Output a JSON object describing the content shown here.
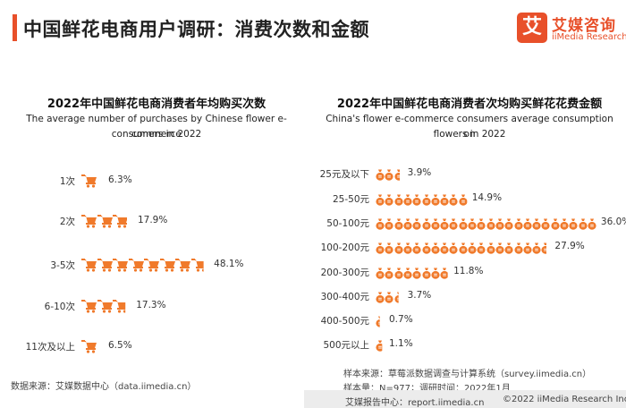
{
  "header": {
    "title": "中国鲜花电商用户调研：消费次数和金额",
    "logo_mark": "艾",
    "logo_cn": "艾媒咨询",
    "logo_en": "iiMedia Research"
  },
  "left_chart": {
    "title": "2022年中国鲜花电商消费者年均购买次数",
    "subtitle_line1": "The average number of purchases by Chinese flower e-commerce",
    "subtitle_line2": "consumers in 2022",
    "icon": "shopping-cart-icon",
    "color": "#f07a2b"
  },
  "right_chart": {
    "title": "2022年中国鲜花电商消费者次均购买鲜花花费金额",
    "subtitle_line1": "China's flower e-commerce consumers average consumption on",
    "subtitle_line2": "flowers in 2022",
    "icon": "money-bag-icon",
    "color": "#f07a2b"
  },
  "chart_data": [
    {
      "type": "bar",
      "title": "2022年中国鲜花电商消费者年均购买次数",
      "categories": [
        "1次",
        "2次",
        "3-5次",
        "6-10次",
        "11次及以上"
      ],
      "values": [
        6.3,
        17.9,
        48.1,
        17.3,
        6.5
      ],
      "value_labels": [
        "6.3%",
        "17.9%",
        "48.1%",
        "17.3%",
        "6.5%"
      ],
      "unit": "%"
    },
    {
      "type": "bar",
      "title": "2022年中国鲜花电商消费者次均购买鲜花花费金额",
      "categories": [
        "25元及以下",
        "25-50元",
        "50-100元",
        "100-200元",
        "200-300元",
        "300-400元",
        "400-500元",
        "500元以上"
      ],
      "values": [
        3.9,
        14.9,
        36.0,
        27.9,
        11.8,
        3.7,
        0.7,
        1.1
      ],
      "value_labels": [
        "3.9%",
        "14.9%",
        "36.0%",
        "27.9%",
        "11.8%",
        "3.7%",
        "0.7%",
        "1.1%"
      ],
      "unit": "%"
    }
  ],
  "footer": {
    "left_source": "数据来源：艾媒数据中心（data.iimedia.cn）",
    "right_source": "样本来源：草莓派数据调查与计算系统（survey.iimedia.cn）",
    "right_sample": "样本量：N=977；调研时间：2022年1月",
    "bottom_report": "艾媒报告中心：report.iimedia.cn",
    "bottom_copyright": "©2022 iiMedia Research Inc"
  }
}
